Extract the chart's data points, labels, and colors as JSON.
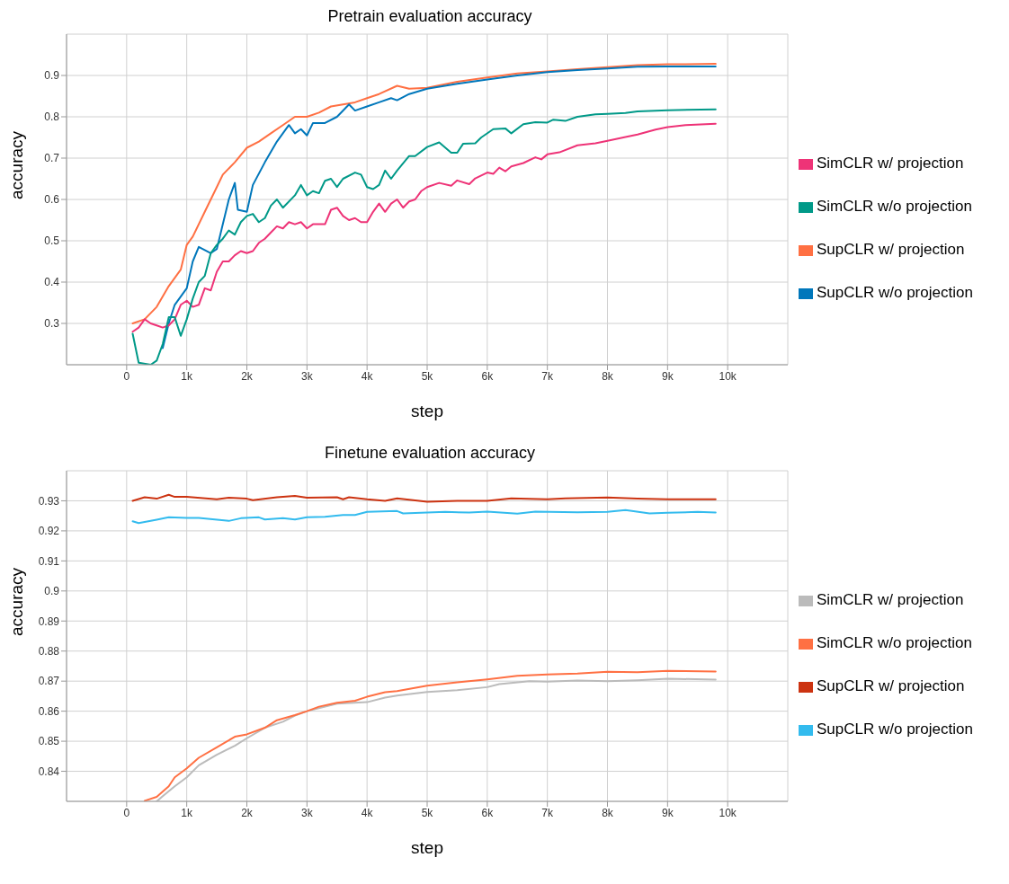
{
  "chart_data": [
    {
      "type": "line",
      "title": "Pretrain evaluation accuracy",
      "xlabel": "step",
      "ylabel": "accuracy",
      "xlim": [
        -1000,
        11000
      ],
      "xticks": [
        0,
        {
          "value": 1000,
          "label": "1k"
        },
        {
          "value": 2000,
          "label": "2k"
        },
        {
          "value": 3000,
          "label": "3k"
        },
        {
          "value": 4000,
          "label": "4k"
        },
        {
          "value": 5000,
          "label": "5k"
        },
        {
          "value": 6000,
          "label": "6k"
        },
        {
          "value": 7000,
          "label": "7k"
        },
        {
          "value": 8000,
          "label": "8k"
        },
        {
          "value": 9000,
          "label": "9k"
        },
        {
          "value": 10000,
          "label": "10k"
        }
      ],
      "ylim": [
        0.2,
        1.0
      ],
      "yticks": [
        0.3,
        0.4,
        0.5,
        0.6,
        0.7,
        0.8,
        0.9
      ],
      "grid": true,
      "legend": "right",
      "series": [
        {
          "name": "SupCLR w/ projection",
          "color": "#ff7043",
          "x": [
            100,
            300,
            500,
            700,
            900,
            1000,
            1100,
            1300,
            1500,
            1600,
            1800,
            2000,
            2200,
            2400,
            2600,
            2800,
            3000,
            3200,
            3400,
            3600,
            3800,
            4000,
            4200,
            4500,
            4700,
            5000,
            5500,
            6000,
            6500,
            7000,
            7500,
            8000,
            8500,
            9000,
            9800
          ],
          "values": [
            0.3,
            0.31,
            0.34,
            0.39,
            0.43,
            0.49,
            0.51,
            0.57,
            0.63,
            0.66,
            0.69,
            0.725,
            0.74,
            0.76,
            0.78,
            0.8,
            0.8,
            0.81,
            0.825,
            0.83,
            0.835,
            0.845,
            0.855,
            0.875,
            0.868,
            0.87,
            0.885,
            0.895,
            0.905,
            0.91,
            0.915,
            0.92,
            0.925,
            0.927,
            0.928
          ]
        },
        {
          "name": "SupCLR w/o projection",
          "color": "#0077bb",
          "x": [
            600,
            700,
            800,
            900,
            1000,
            1100,
            1200,
            1400,
            1500,
            1700,
            1800,
            1850,
            2000,
            2100,
            2300,
            2500,
            2600,
            2700,
            2800,
            2900,
            3000,
            3100,
            3300,
            3500,
            3700,
            3800,
            4000,
            4200,
            4400,
            4500,
            4700,
            5000,
            5500,
            6000,
            6500,
            7000,
            7500,
            8000,
            8500,
            9000,
            9800
          ],
          "values": [
            0.24,
            0.3,
            0.345,
            0.365,
            0.385,
            0.45,
            0.485,
            0.47,
            0.48,
            0.6,
            0.64,
            0.575,
            0.57,
            0.635,
            0.69,
            0.74,
            0.76,
            0.78,
            0.76,
            0.77,
            0.755,
            0.785,
            0.785,
            0.8,
            0.83,
            0.815,
            0.825,
            0.835,
            0.845,
            0.84,
            0.855,
            0.868,
            0.88,
            0.89,
            0.9,
            0.908,
            0.913,
            0.917,
            0.921,
            0.922,
            0.922
          ]
        },
        {
          "name": "SimCLR w/ projection",
          "color": "#ee3377",
          "x": [
            100,
            200,
            300,
            400,
            500,
            600,
            700,
            800,
            900,
            1000,
            1100,
            1200,
            1300,
            1400,
            1500,
            1600,
            1700,
            1800,
            1900,
            2000,
            2100,
            2200,
            2300,
            2400,
            2500,
            2600,
            2700,
            2800,
            2900,
            3000,
            3100,
            3300,
            3400,
            3500,
            3600,
            3700,
            3800,
            3900,
            4000,
            4100,
            4200,
            4300,
            4400,
            4500,
            4600,
            4700,
            4800,
            4900,
            5000,
            5200,
            5400,
            5500,
            5700,
            5800,
            6000,
            6100,
            6200,
            6300,
            6400,
            6600,
            6800,
            6900,
            7000,
            7200,
            7500,
            7800,
            8000,
            8300,
            8500,
            8800,
            9000,
            9300,
            9800
          ],
          "values": [
            0.28,
            0.29,
            0.31,
            0.3,
            0.295,
            0.29,
            0.295,
            0.31,
            0.345,
            0.355,
            0.34,
            0.345,
            0.385,
            0.38,
            0.425,
            0.45,
            0.45,
            0.465,
            0.475,
            0.47,
            0.475,
            0.495,
            0.505,
            0.52,
            0.535,
            0.53,
            0.545,
            0.54,
            0.545,
            0.53,
            0.54,
            0.54,
            0.575,
            0.58,
            0.56,
            0.55,
            0.555,
            0.545,
            0.545,
            0.57,
            0.59,
            0.57,
            0.59,
            0.6,
            0.58,
            0.595,
            0.6,
            0.62,
            0.63,
            0.64,
            0.633,
            0.646,
            0.637,
            0.651,
            0.665,
            0.662,
            0.677,
            0.668,
            0.68,
            0.688,
            0.702,
            0.697,
            0.709,
            0.714,
            0.731,
            0.736,
            0.742,
            0.751,
            0.757,
            0.769,
            0.775,
            0.78,
            0.783
          ]
        },
        {
          "name": "SimCLR w/o projection",
          "color": "#009988",
          "x": [
            100,
            200,
            400,
            500,
            600,
            700,
            800,
            900,
            1000,
            1100,
            1200,
            1300,
            1400,
            1500,
            1600,
            1700,
            1800,
            1900,
            2000,
            2100,
            2200,
            2300,
            2400,
            2500,
            2600,
            2800,
            2900,
            3000,
            3100,
            3200,
            3300,
            3400,
            3500,
            3600,
            3800,
            3900,
            4000,
            4100,
            4200,
            4300,
            4400,
            4500,
            4700,
            4800,
            5000,
            5200,
            5400,
            5500,
            5600,
            5800,
            5900,
            6100,
            6300,
            6400,
            6600,
            6800,
            7000,
            7100,
            7300,
            7500,
            7800,
            8000,
            8300,
            8500,
            9000,
            9800
          ],
          "values": [
            0.275,
            0.205,
            0.2,
            0.21,
            0.25,
            0.315,
            0.315,
            0.27,
            0.31,
            0.36,
            0.4,
            0.415,
            0.47,
            0.49,
            0.505,
            0.525,
            0.515,
            0.545,
            0.56,
            0.565,
            0.545,
            0.555,
            0.585,
            0.6,
            0.58,
            0.61,
            0.635,
            0.61,
            0.62,
            0.615,
            0.645,
            0.65,
            0.63,
            0.65,
            0.665,
            0.66,
            0.63,
            0.625,
            0.635,
            0.67,
            0.65,
            0.67,
            0.705,
            0.705,
            0.727,
            0.738,
            0.713,
            0.713,
            0.735,
            0.736,
            0.75,
            0.77,
            0.772,
            0.76,
            0.782,
            0.787,
            0.786,
            0.793,
            0.79,
            0.8,
            0.806,
            0.807,
            0.809,
            0.813,
            0.816,
            0.818
          ]
        }
      ]
    },
    {
      "type": "line",
      "title": "Finetune evaluation accuracy",
      "xlabel": "step",
      "ylabel": "accuracy",
      "xlim": [
        -1000,
        11000
      ],
      "xticks": [
        0,
        {
          "value": 1000,
          "label": "1k"
        },
        {
          "value": 2000,
          "label": "2k"
        },
        {
          "value": 3000,
          "label": "3k"
        },
        {
          "value": 4000,
          "label": "4k"
        },
        {
          "value": 5000,
          "label": "5k"
        },
        {
          "value": 6000,
          "label": "6k"
        },
        {
          "value": 7000,
          "label": "7k"
        },
        {
          "value": 8000,
          "label": "8k"
        },
        {
          "value": 9000,
          "label": "9k"
        },
        {
          "value": 10000,
          "label": "10k"
        }
      ],
      "ylim": [
        0.83,
        0.94
      ],
      "yticks": [
        0.84,
        0.85,
        0.86,
        0.87,
        0.88,
        0.89,
        0.9,
        0.91,
        0.92,
        0.93
      ],
      "grid": true,
      "legend": "right",
      "series": [
        {
          "name": "SupCLR w/ projection",
          "color": "#cc3311",
          "x": [
            100,
            300,
            500,
            700,
            800,
            1000,
            1500,
            1700,
            2000,
            2100,
            2500,
            2800,
            3000,
            3500,
            3600,
            3700,
            4000,
            4300,
            4500,
            5000,
            5500,
            6000,
            6400,
            7000,
            7300,
            8000,
            8500,
            9000,
            9800
          ],
          "values": [
            0.93,
            0.9312,
            0.9307,
            0.932,
            0.9313,
            0.9313,
            0.9305,
            0.931,
            0.9307,
            0.9302,
            0.9312,
            0.9316,
            0.931,
            0.9312,
            0.9305,
            0.9312,
            0.9305,
            0.93,
            0.9308,
            0.9297,
            0.93,
            0.93,
            0.9308,
            0.9305,
            0.9308,
            0.9311,
            0.9307,
            0.9305,
            0.9305
          ]
        },
        {
          "name": "SupCLR w/o projection",
          "color": "#33bbee",
          "x": [
            100,
            200,
            500,
            700,
            1000,
            1200,
            1700,
            1900,
            2200,
            2300,
            2600,
            2800,
            3000,
            3300,
            3600,
            3800,
            4000,
            4500,
            4600,
            5000,
            5300,
            5700,
            6000,
            6500,
            6800,
            7500,
            8000,
            8300,
            8700,
            9000,
            9500,
            9800
          ],
          "values": [
            0.9232,
            0.9226,
            0.9237,
            0.9245,
            0.9243,
            0.9243,
            0.9233,
            0.9242,
            0.9245,
            0.9238,
            0.9242,
            0.9238,
            0.9245,
            0.9247,
            0.9253,
            0.9253,
            0.9263,
            0.9266,
            0.9258,
            0.9261,
            0.9263,
            0.9261,
            0.9264,
            0.9257,
            0.9264,
            0.9262,
            0.9263,
            0.9269,
            0.9258,
            0.926,
            0.9263,
            0.9261
          ]
        },
        {
          "name": "SimCLR w/ projection",
          "color": "#bbbbbb",
          "x": [
            500,
            600,
            800,
            1000,
            1200,
            1500,
            1800,
            2000,
            2300,
            2600,
            2800,
            3000,
            3500,
            4000,
            4300,
            4500,
            5000,
            5500,
            6000,
            6200,
            6700,
            7000,
            7500,
            8000,
            8500,
            9000,
            9800
          ],
          "values": [
            0.83,
            0.8317,
            0.835,
            0.838,
            0.842,
            0.8455,
            0.8485,
            0.851,
            0.8545,
            0.8565,
            0.8585,
            0.86,
            0.8625,
            0.863,
            0.8645,
            0.8652,
            0.8664,
            0.867,
            0.868,
            0.869,
            0.87,
            0.8698,
            0.8702,
            0.87,
            0.8703,
            0.8708,
            0.8705
          ]
        },
        {
          "name": "SimCLR w/o projection",
          "color": "#ff7043",
          "x": [
            300,
            500,
            700,
            800,
            1000,
            1200,
            1500,
            1800,
            2000,
            2300,
            2500,
            2800,
            3000,
            3200,
            3500,
            3800,
            4000,
            4300,
            4500,
            5000,
            5500,
            6000,
            6500,
            7000,
            7500,
            8000,
            8500,
            9000,
            9800
          ],
          "values": [
            0.8302,
            0.8315,
            0.835,
            0.838,
            0.841,
            0.8445,
            0.848,
            0.8515,
            0.8523,
            0.8545,
            0.857,
            0.8587,
            0.86,
            0.8615,
            0.8628,
            0.8635,
            0.8648,
            0.8663,
            0.8667,
            0.8685,
            0.8696,
            0.8706,
            0.8718,
            0.8722,
            0.8725,
            0.8731,
            0.873,
            0.8734,
            0.8732
          ]
        }
      ]
    }
  ]
}
